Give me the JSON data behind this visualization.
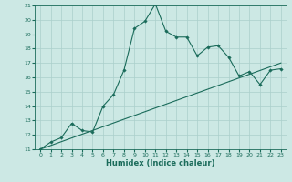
{
  "xlabel": "Humidex (Indice chaleur)",
  "bg_color": "#cce8e4",
  "line_color": "#1a6b5a",
  "grid_color": "#aacfcb",
  "curve1_x": [
    0,
    1,
    2,
    3,
    4,
    5,
    6,
    7,
    8,
    9,
    10,
    11,
    12,
    13,
    14,
    15,
    16,
    17,
    18,
    19,
    20,
    21,
    22,
    23
  ],
  "curve1_y": [
    11,
    11.5,
    11.8,
    12.8,
    12.3,
    12.2,
    14.0,
    14.8,
    16.5,
    19.4,
    19.9,
    21.1,
    19.2,
    18.8,
    18.8,
    17.5,
    18.1,
    18.2,
    17.4,
    16.1,
    16.4,
    15.5,
    16.5,
    16.6
  ],
  "curve2_x": [
    0,
    23
  ],
  "curve2_y": [
    11.0,
    17.0
  ],
  "xlim": [
    -0.5,
    23.5
  ],
  "ylim": [
    11,
    21
  ],
  "yticks": [
    11,
    12,
    13,
    14,
    15,
    16,
    17,
    18,
    19,
    20,
    21
  ],
  "xticks": [
    0,
    1,
    2,
    3,
    4,
    5,
    6,
    7,
    8,
    9,
    10,
    11,
    12,
    13,
    14,
    15,
    16,
    17,
    18,
    19,
    20,
    21,
    22,
    23
  ],
  "tick_fontsize": 4.5,
  "xlabel_fontsize": 6.0,
  "marker_size": 1.8,
  "linewidth": 0.8
}
